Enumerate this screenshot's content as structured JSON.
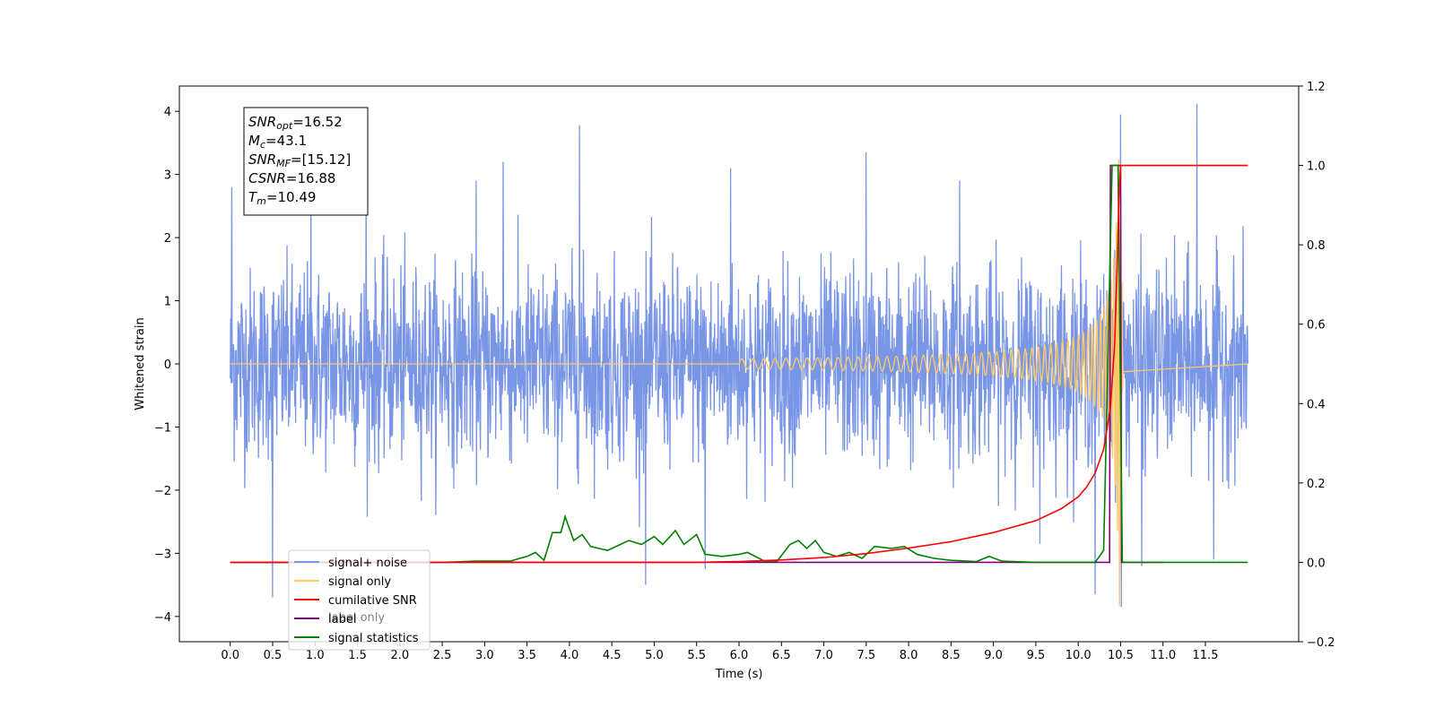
{
  "chart_data": {
    "type": "line",
    "xlabel": "Time (s)",
    "ylabel": "Whitened strain",
    "xlim": [
      -0.6,
      12.6
    ],
    "ylim": [
      -4.4,
      4.4
    ],
    "y2lim": [
      -0.2,
      1.2
    ],
    "xticks": [
      "0.0",
      "0.5",
      "1.0",
      "1.5",
      "2.0",
      "2.5",
      "3.0",
      "3.5",
      "4.0",
      "4.5",
      "5.0",
      "5.5",
      "6.0",
      "6.5",
      "7.0",
      "7.5",
      "8.0",
      "8.5",
      "9.0",
      "9.5",
      "10.0",
      "10.5",
      "11.0",
      "11.5"
    ],
    "yticks": [
      "4",
      "3",
      "2",
      "1",
      "0",
      "−1",
      "−2",
      "−3",
      "−4"
    ],
    "y2ticks": [
      "1.2",
      "1.0",
      "0.8",
      "0.6",
      "0.4",
      "0.2",
      "0.0",
      "−0.2"
    ],
    "grid": false,
    "legend_position": "lower-left",
    "legend": [
      {
        "label": "signal+ noise",
        "color": "#7895e6"
      },
      {
        "label": "signal only",
        "color": "#ffc966"
      },
      {
        "label": "cumilative SNR",
        "color": "#ff0000"
      },
      {
        "label": "label",
        "color": "#800080"
      },
      {
        "label": "signal statistics",
        "color": "#008000"
      }
    ],
    "hidden_text": "label only",
    "info_box": [
      {
        "sym": "SNR",
        "sub": "opt",
        "value": "=16.52"
      },
      {
        "sym": "M",
        "sub": "c",
        "value": "=43.1"
      },
      {
        "sym": "SNR",
        "sub": "MF",
        "value": "=[15.12]"
      },
      {
        "sym": "CSNR",
        "sub": "",
        "value": "=16.88"
      },
      {
        "sym": "T",
        "sub": "m",
        "value": "=10.49"
      }
    ],
    "noise_range": {
      "x": [
        0.0,
        12.0
      ],
      "y_typical": [
        -2.0,
        2.0
      ],
      "y_extreme": [
        -3.7,
        4.1
      ]
    },
    "noise_spikes": [
      [
        0.5,
        -3.7
      ],
      [
        0.95,
        2.95
      ],
      [
        4.12,
        3.78
      ],
      [
        4.9,
        -3.5
      ],
      [
        5.6,
        -3.25
      ],
      [
        7.5,
        3.35
      ],
      [
        9.55,
        -2.85
      ],
      [
        10.5,
        3.95
      ],
      [
        10.51,
        -3.85
      ],
      [
        10.75,
        -3.2
      ],
      [
        11.4,
        4.12
      ],
      [
        11.6,
        -3.1
      ],
      [
        10.2,
        -3.65
      ],
      [
        0.02,
        2.8
      ],
      [
        3.22,
        3.2
      ],
      [
        1.6,
        3.1
      ],
      [
        5.9,
        3.1
      ],
      [
        2.9,
        2.9
      ],
      [
        8.6,
        2.9
      ]
    ],
    "signal_only": {
      "x_start": 6.0,
      "merger": 10.49,
      "peak_amplitude": 3.85,
      "freq_start": 7.5,
      "freq_end": 50
    },
    "cumulative_snr": [
      [
        0.0,
        0.0
      ],
      [
        5.5,
        0.0
      ],
      [
        6.0,
        0.002
      ],
      [
        6.5,
        0.006
      ],
      [
        7.0,
        0.012
      ],
      [
        7.5,
        0.022
      ],
      [
        8.0,
        0.036
      ],
      [
        8.5,
        0.052
      ],
      [
        9.0,
        0.075
      ],
      [
        9.5,
        0.105
      ],
      [
        9.8,
        0.135
      ],
      [
        10.0,
        0.165
      ],
      [
        10.1,
        0.19
      ],
      [
        10.2,
        0.225
      ],
      [
        10.3,
        0.285
      ],
      [
        10.38,
        0.39
      ],
      [
        10.43,
        0.55
      ],
      [
        10.46,
        0.75
      ],
      [
        10.48,
        0.92
      ],
      [
        10.5,
        1.0
      ],
      [
        12.0,
        1.0
      ]
    ],
    "label_line": [
      [
        0.0,
        0.0
      ],
      [
        10.37,
        0.0
      ],
      [
        10.38,
        1.0
      ],
      [
        10.5,
        1.0
      ],
      [
        10.51,
        0.0
      ],
      [
        11.0,
        0.0
      ]
    ],
    "signal_statistics": [
      [
        0.0,
        0.0
      ],
      [
        1.5,
        0.0
      ],
      [
        2.5,
        0.0
      ],
      [
        2.9,
        0.003
      ],
      [
        3.3,
        0.003
      ],
      [
        3.5,
        0.015
      ],
      [
        3.6,
        0.025
      ],
      [
        3.7,
        0.005
      ],
      [
        3.8,
        0.075
      ],
      [
        3.9,
        0.075
      ],
      [
        3.95,
        0.115
      ],
      [
        4.05,
        0.055
      ],
      [
        4.15,
        0.07
      ],
      [
        4.25,
        0.04
      ],
      [
        4.45,
        0.03
      ],
      [
        4.6,
        0.045
      ],
      [
        4.7,
        0.055
      ],
      [
        4.85,
        0.045
      ],
      [
        5.0,
        0.065
      ],
      [
        5.1,
        0.045
      ],
      [
        5.25,
        0.08
      ],
      [
        5.35,
        0.045
      ],
      [
        5.5,
        0.07
      ],
      [
        5.6,
        0.02
      ],
      [
        5.8,
        0.015
      ],
      [
        6.0,
        0.02
      ],
      [
        6.1,
        0.025
      ],
      [
        6.3,
        0.003
      ],
      [
        6.45,
        0.003
      ],
      [
        6.6,
        0.045
      ],
      [
        6.7,
        0.055
      ],
      [
        6.8,
        0.035
      ],
      [
        6.9,
        0.055
      ],
      [
        7.0,
        0.025
      ],
      [
        7.15,
        0.015
      ],
      [
        7.3,
        0.025
      ],
      [
        7.45,
        0.01
      ],
      [
        7.6,
        0.04
      ],
      [
        7.8,
        0.035
      ],
      [
        7.95,
        0.04
      ],
      [
        8.1,
        0.02
      ],
      [
        8.3,
        0.01
      ],
      [
        8.5,
        0.005
      ],
      [
        8.8,
        0.002
      ],
      [
        8.95,
        0.015
      ],
      [
        9.1,
        0.003
      ],
      [
        9.5,
        0.0
      ],
      [
        10.2,
        0.0
      ],
      [
        10.3,
        0.03
      ],
      [
        10.4,
        1.0
      ],
      [
        10.47,
        1.0
      ],
      [
        10.52,
        0.0
      ],
      [
        11.0,
        0.0
      ],
      [
        12.0,
        0.0
      ]
    ]
  }
}
